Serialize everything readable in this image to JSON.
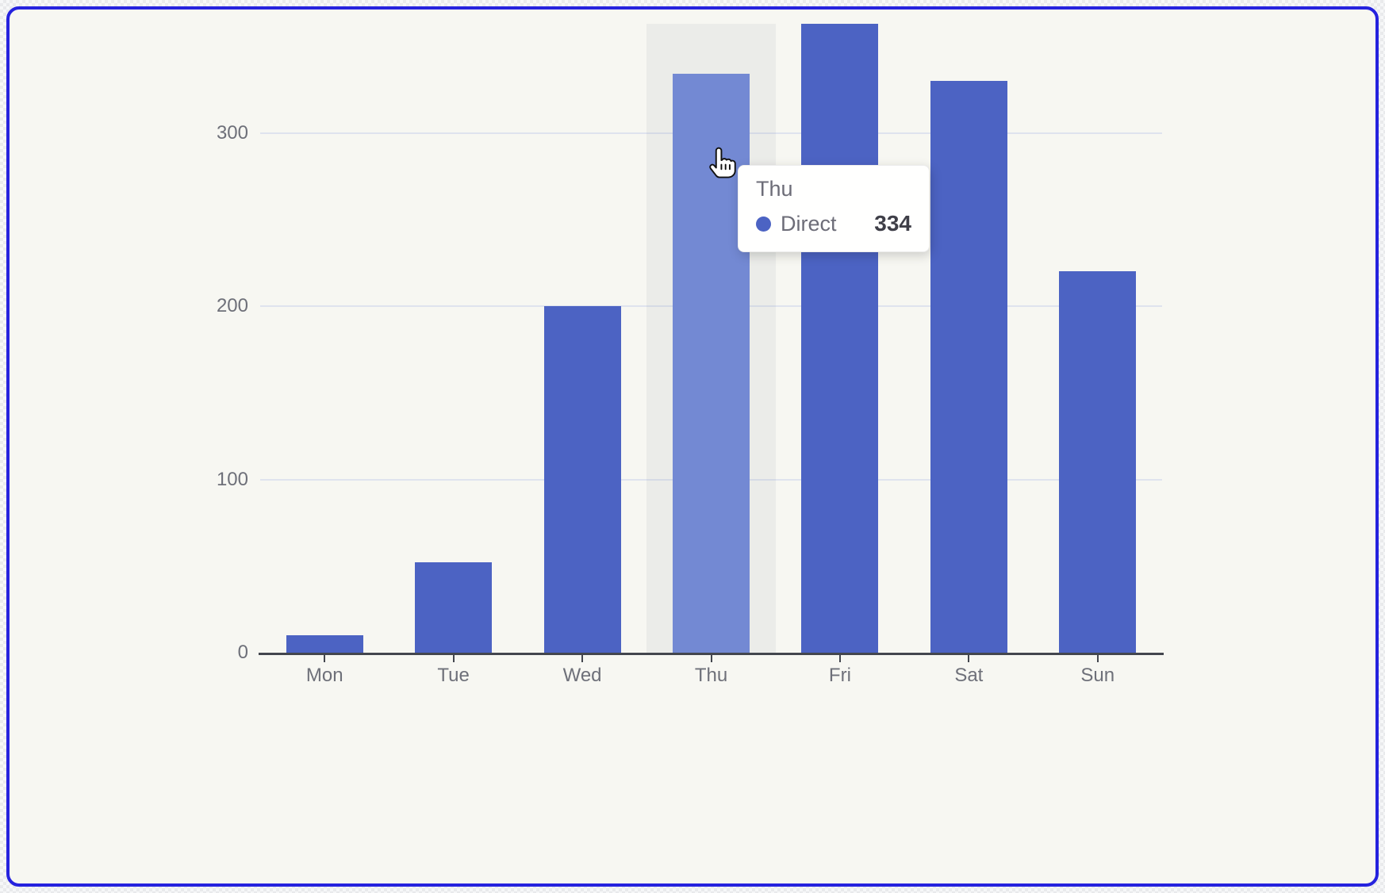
{
  "page": {
    "border_color": "#2522de",
    "background_color": "#f7f7f2",
    "accent_color": "#4c63c3"
  },
  "chart_data": {
    "type": "bar",
    "title": "",
    "xlabel": "",
    "ylabel": "",
    "categories": [
      "Mon",
      "Tue",
      "Wed",
      "Thu",
      "Fri",
      "Sat",
      "Sun"
    ],
    "series": [
      {
        "name": "Direct",
        "values": [
          10,
          52,
          200,
          334,
          363,
          330,
          220
        ]
      }
    ],
    "yticks": [
      0,
      100,
      200,
      300
    ],
    "ytick_labels": [
      "0",
      "100",
      "200",
      "300"
    ],
    "ylim": [
      0,
      363
    ],
    "grid": true,
    "legend_position": "none",
    "bar_color": "#4c63c3",
    "bar_color_hover": "#7389d3",
    "grid_color": "#dfe3ee",
    "axis_color": "#43464e",
    "label_color": "#6e7079",
    "hovered_category": "Thu",
    "hovered_value": 334
  },
  "tooltip": {
    "title": "Thu",
    "series_label": "Direct",
    "value": "334",
    "marker_color": "#4c63c3"
  }
}
